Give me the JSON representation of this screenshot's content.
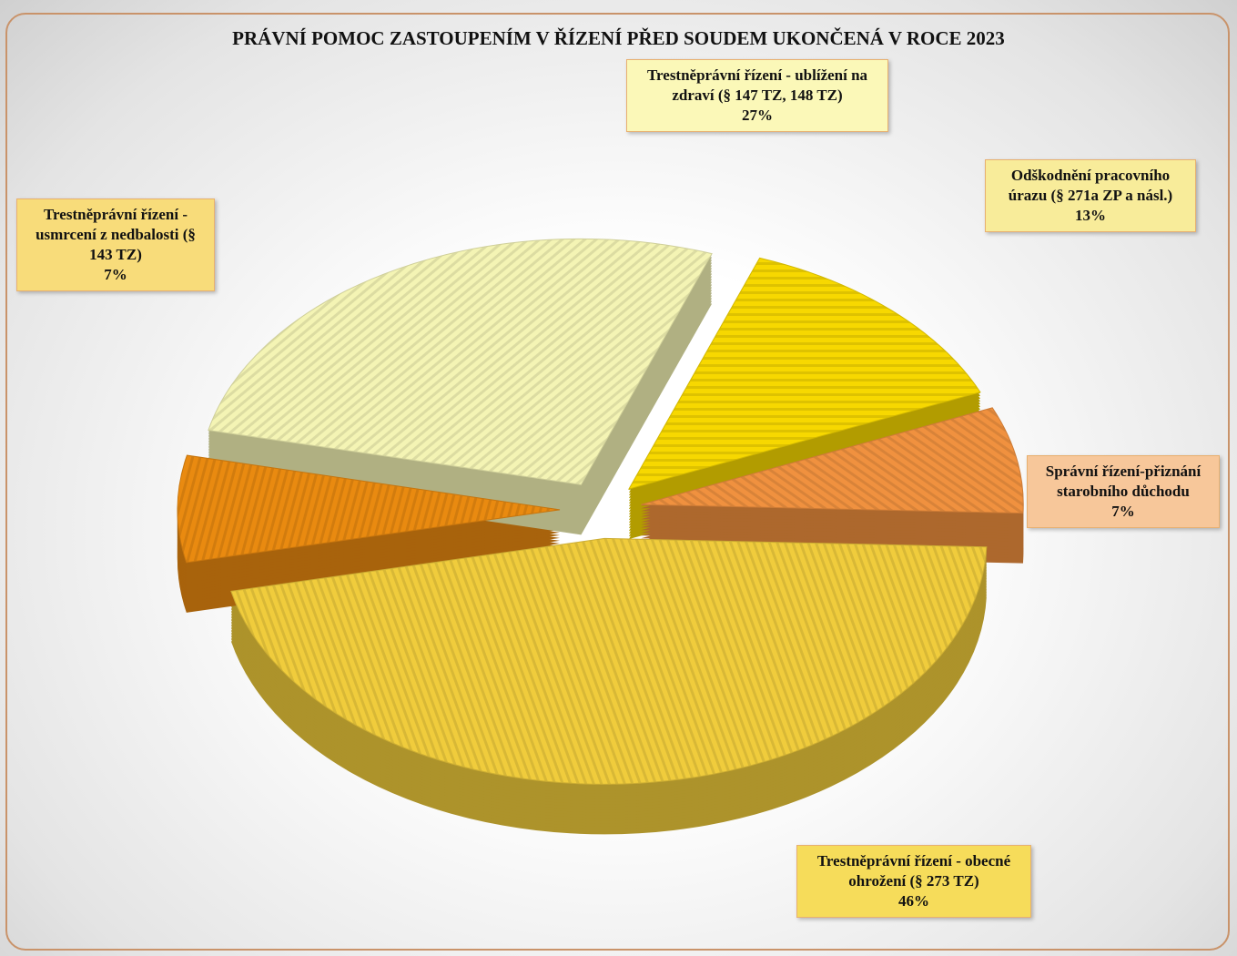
{
  "chart_data": {
    "type": "pie",
    "title": "PRÁVNÍ POMOC ZASTOUPENÍM V ŘÍZENÍ PŘED SOUDEM UKONČENÁ V ROCE 2023",
    "categories": [
      "Odškodnění pracovního úrazu (§ 271a ZP a násl.)",
      "Správní řízení-přiznání starobního důchodu",
      "Trestněprávní řízení - obecné ohrožení (§ 273 TZ)",
      "Trestněprávní řízení - usmrcení z nedbalosti (§ 143 TZ)",
      "Trestněprávní řízení - ublížení na zdraví (§ 147 TZ, 148 TZ)"
    ],
    "values": [
      13,
      7,
      46,
      7,
      27
    ],
    "value_labels": [
      "13%",
      "7%",
      "46%",
      "7%",
      "27%"
    ],
    "colors": [
      "#f7d800",
      "#f0913f",
      "#f0cc3c",
      "#e98a10",
      "#f4f4b4"
    ]
  }
}
